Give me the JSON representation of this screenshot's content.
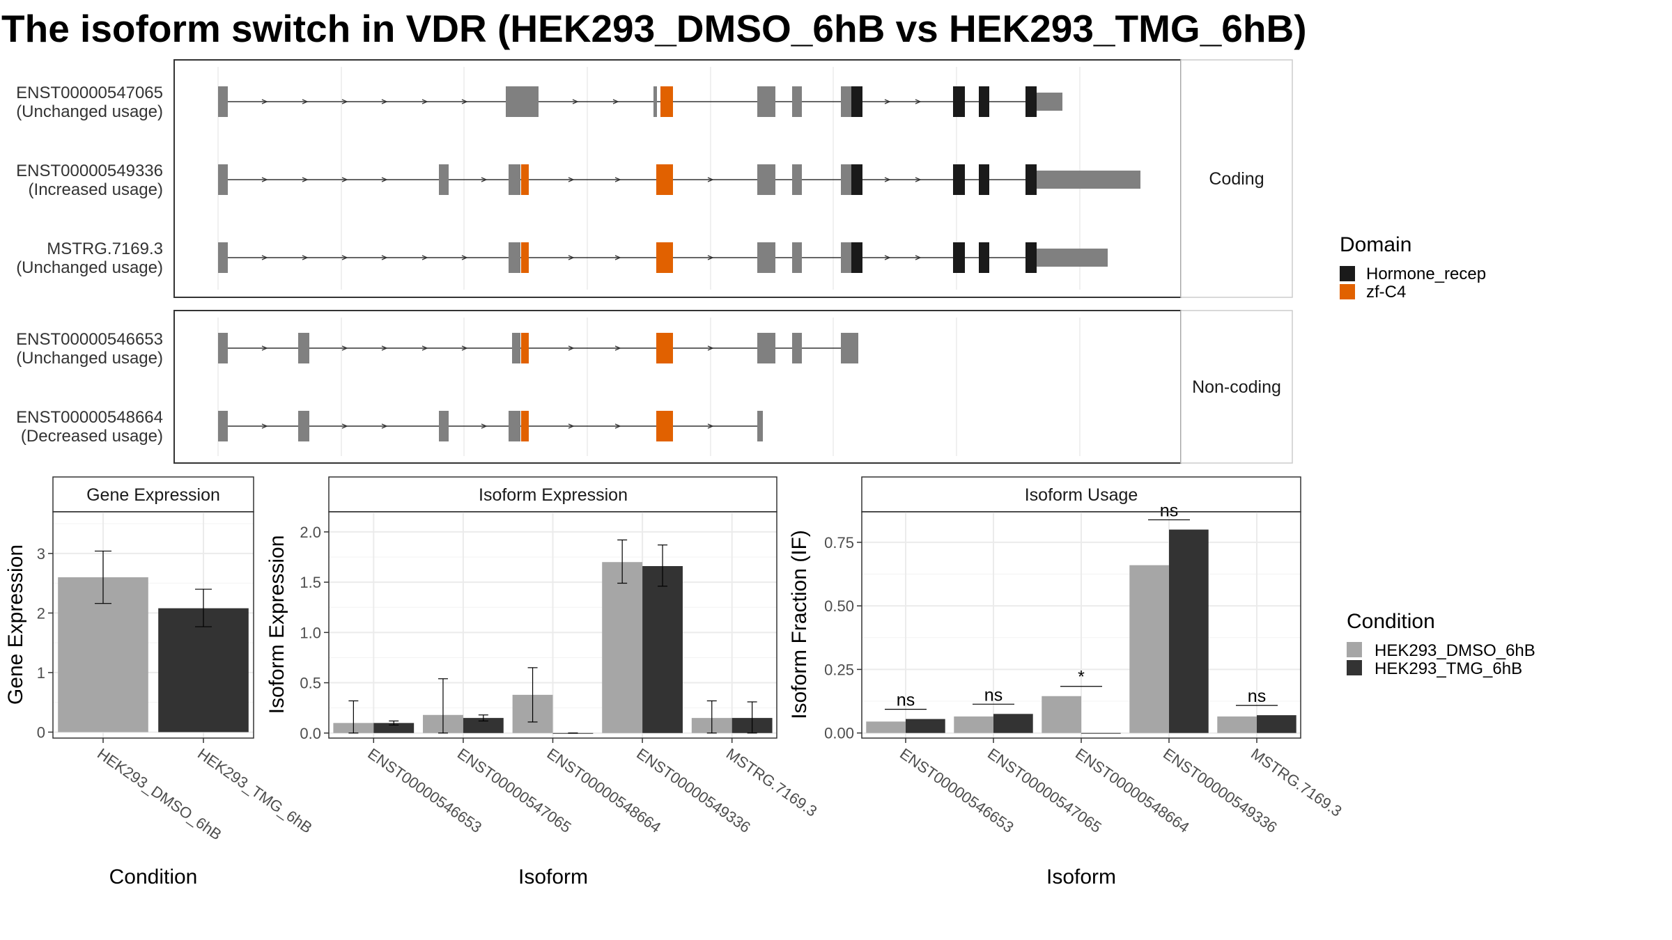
{
  "title": "The isoform switch in VDR (HEK293_DMSO_6hB vs HEK293_TMG_6hB)",
  "colors": {
    "exon": "#808080",
    "intron": "#333333",
    "domain_hormone": "#1a1a1a",
    "domain_zf": "#e16100",
    "dmso": "#a6a6a6",
    "tmg": "#333333",
    "grid": "#ebebeb",
    "panel_border": "#333333",
    "strip_fill": "#ffffff"
  },
  "structure": {
    "facets": [
      {
        "label": "Coding",
        "isoforms": [
          {
            "name": "ENST00000547065",
            "usage": "(Unchanged usage)"
          },
          {
            "name": "ENST00000549336",
            "usage": "(Increased usage)"
          },
          {
            "name": "MSTRG.7169.3",
            "usage": "(Unchanged usage)"
          }
        ]
      },
      {
        "label": "Non-coding",
        "isoforms": [
          {
            "name": "ENST00000546653",
            "usage": "(Unchanged usage)"
          },
          {
            "name": "ENST00000548664",
            "usage": "(Decreased usage)"
          }
        ]
      }
    ],
    "legend": {
      "title": "Domain",
      "items": [
        {
          "label": "Hormone_recep",
          "color": "#1a1a1a"
        },
        {
          "label": "zf-C4",
          "color": "#e16100"
        }
      ]
    }
  },
  "chart_data": [
    {
      "type": "bar",
      "title": "Gene Expression",
      "xlabel": "Condition",
      "ylabel": "Gene Expression",
      "categories": [
        "HEK293_DMSO_6hB",
        "HEK293_TMG_6hB"
      ],
      "values": [
        2.6,
        2.08
      ],
      "error_low": [
        2.16,
        1.77
      ],
      "error_high": [
        3.04,
        2.4
      ],
      "ylim": [
        -0.1,
        3.7
      ],
      "yticks": [
        0,
        1,
        2,
        3
      ],
      "grid": true
    },
    {
      "type": "bar",
      "title": "Isoform Expression",
      "xlabel": "Isoform",
      "ylabel": "Isoform Expression",
      "categories": [
        "ENST00000546653",
        "ENST00000547065",
        "ENST00000548664",
        "ENST00000549336",
        "MSTRG.7169.3"
      ],
      "series": [
        {
          "name": "HEK293_DMSO_6hB",
          "values": [
            0.1,
            0.18,
            0.38,
            1.7,
            0.15
          ],
          "error_low": [
            0.0,
            0.0,
            0.11,
            1.49,
            0.0
          ],
          "error_high": [
            0.32,
            0.54,
            0.65,
            1.92,
            0.32
          ]
        },
        {
          "name": "HEK293_TMG_6hB",
          "values": [
            0.1,
            0.15,
            0.0,
            1.66,
            0.15
          ],
          "error_low": [
            0.08,
            0.12,
            0.0,
            1.46,
            0.0
          ],
          "error_high": [
            0.12,
            0.18,
            0.0,
            1.87,
            0.31
          ]
        }
      ],
      "ylim": [
        -0.05,
        2.2
      ],
      "yticks": [
        0.0,
        0.5,
        1.0,
        1.5,
        2.0
      ],
      "ytick_labels": [
        "0.0",
        "0.5",
        "1.0",
        "1.5",
        "2.0"
      ],
      "grid": true
    },
    {
      "type": "bar",
      "title": "Isoform Usage",
      "xlabel": "Isoform",
      "ylabel": "Isoform Fraction (IF)",
      "categories": [
        "ENST00000546653",
        "ENST00000547065",
        "ENST00000548664",
        "ENST00000549336",
        "MSTRG.7169.3"
      ],
      "series": [
        {
          "name": "HEK293_DMSO_6hB",
          "values": [
            0.045,
            0.065,
            0.145,
            0.66,
            0.065
          ]
        },
        {
          "name": "HEK293_TMG_6hB",
          "values": [
            0.055,
            0.075,
            0.0,
            0.8,
            0.07
          ]
        }
      ],
      "significance": [
        "ns",
        "ns",
        "*",
        "ns",
        "ns"
      ],
      "ylim": [
        -0.02,
        0.87
      ],
      "yticks": [
        0.0,
        0.25,
        0.5,
        0.75
      ],
      "ytick_labels": [
        "0.00",
        "0.25",
        "0.50",
        "0.75"
      ],
      "grid": true
    }
  ],
  "condition_legend": {
    "title": "Condition",
    "items": [
      {
        "label": "HEK293_DMSO_6hB",
        "color": "#a6a6a6"
      },
      {
        "label": "HEK293_TMG_6hB",
        "color": "#333333"
      }
    ]
  }
}
